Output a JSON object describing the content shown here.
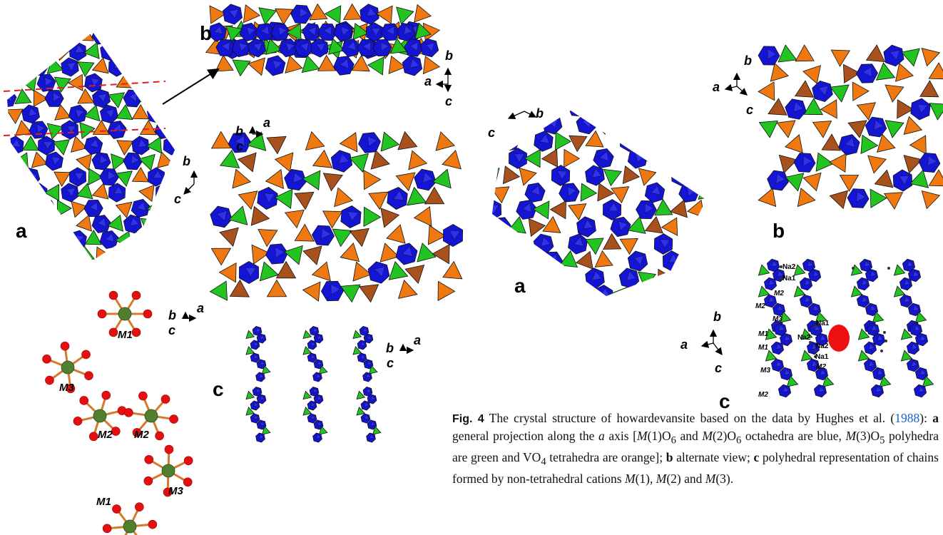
{
  "figure_left": {
    "panel_a": "a",
    "panel_b": "b",
    "panel_c": "c",
    "axes_a": [
      "b",
      "c"
    ],
    "axes_b": [
      "b",
      "a",
      "c"
    ],
    "axes_mid": [
      "b",
      "a",
      "c"
    ],
    "axes_bs": [
      "b",
      "a",
      "c"
    ],
    "axes_c": [
      "b",
      "a",
      "c"
    ],
    "atom_labels": [
      "M1",
      "M3",
      "M2",
      "M2",
      "M3",
      "M1"
    ]
  },
  "figure_right": {
    "panel_a": "a",
    "panel_b": "b",
    "panel_c": "c",
    "axes_a": [
      "b",
      "c"
    ],
    "axes_b": [
      "a",
      "b",
      "c"
    ],
    "axes_c": [
      "b",
      "a",
      "c"
    ],
    "site_labels": [
      "Na2",
      "Na1",
      "M2",
      "M2",
      "M3",
      "Na1",
      "M1",
      "Na2",
      "Na2",
      "M1",
      "Na1",
      "M3",
      "M2",
      "M2"
    ]
  },
  "caption": {
    "label": "Fig. 4",
    "runs": [
      " The crystal structure of howardevansite based on the data by Hughes et al. (",
      "1988",
      "): ",
      "a",
      " general projection along the ",
      "a",
      " axis [",
      "M",
      "(1)O",
      "6",
      " and ",
      "M",
      "(2)O",
      "6",
      " octahedra are blue, ",
      "M",
      "(3)O",
      "5",
      " polyhedra are green and VO",
      "4",
      " tetrahedra are orange]; ",
      "b",
      " alternate view; ",
      "c",
      " polyhedral representation of chains formed by non-tetrahedral cations ",
      "M",
      "(1), ",
      "M",
      "(2) and ",
      "M",
      "(3)."
    ]
  }
}
